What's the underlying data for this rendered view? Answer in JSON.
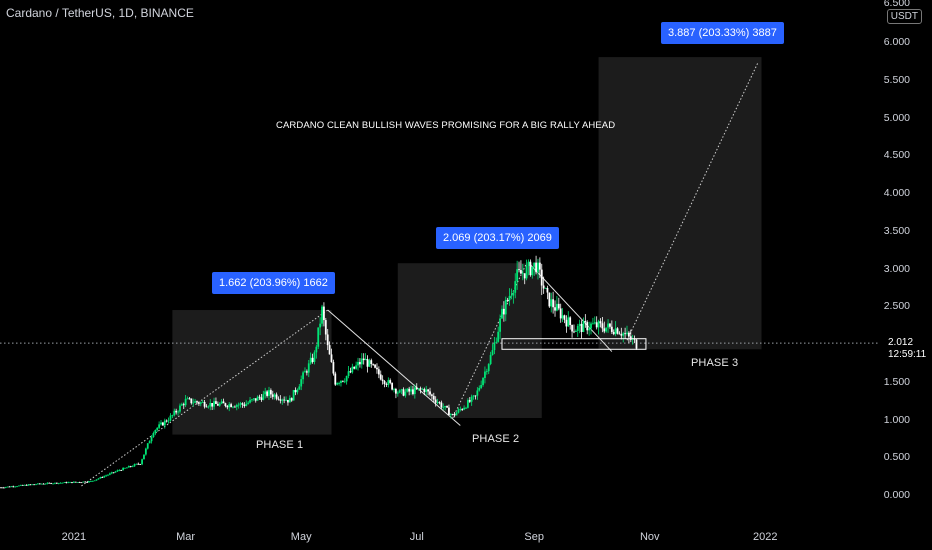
{
  "header": {
    "title": "Cardano / TetherUS, 1D, BINANCE"
  },
  "axis": {
    "unit_label": "USDT",
    "top_cut_label": "6.500"
  },
  "annotations": {
    "headline": "CARDANO CLEAN BULLISH WAVES PROMISING FOR A BIG RALLY AHEAD",
    "badge1": "1.662 (203.96%) 1662",
    "badge2": "2.069 (203.17%) 2069",
    "badge3": "3.887 (203.33%) 3887",
    "phase1": "PHASE 1",
    "phase2": "PHASE 2",
    "phase3": "PHASE 3"
  },
  "price_label": {
    "value": "2.012",
    "countdown": "12:59:11"
  },
  "colors": {
    "up": "#00e676",
    "down": "#ffffff",
    "badge": "#2962ff",
    "box": "#1c1c1c"
  },
  "chart_data": {
    "type": "line",
    "title": "Cardano / TetherUS, 1D, BINANCE",
    "xlabel": "",
    "ylabel": "USDT",
    "ylim": [
      -0.2,
      6.5
    ],
    "y_ticks": [
      "6.000",
      "5.500",
      "5.000",
      "4.500",
      "4.000",
      "3.500",
      "3.000",
      "2.500",
      "1.500",
      "1.000",
      "0.500",
      "0.000"
    ],
    "y_tick_values": [
      6.0,
      5.5,
      5.0,
      4.5,
      4.0,
      3.5,
      3.0,
      2.5,
      1.5,
      1.0,
      0.5,
      0.0
    ],
    "x_ticks": [
      "2021",
      "Mar",
      "May",
      "Jul",
      "Sep",
      "Nov",
      "2022"
    ],
    "x_tick_values": [
      "2021-01-01",
      "2021-03-01",
      "2021-05-01",
      "2021-07-01",
      "2021-09-01",
      "2021-11-01",
      "2022-01-01"
    ],
    "xlim": [
      "2020-11-23",
      "2022-02-20"
    ],
    "series": [
      {
        "x": [
          "2020-11-23",
          "2020-12-15",
          "2021-01-10",
          "2021-01-25",
          "2021-02-05",
          "2021-02-12",
          "2021-02-22",
          "2021-03-01",
          "2021-03-15",
          "2021-04-01",
          "2021-04-14",
          "2021-04-25",
          "2021-05-08",
          "2021-05-12",
          "2021-05-15",
          "2021-05-19",
          "2021-05-24",
          "2021-06-03",
          "2021-06-15",
          "2021-06-22",
          "2021-07-05",
          "2021-07-20",
          "2021-08-01",
          "2021-08-10",
          "2021-08-15",
          "2021-08-23",
          "2021-09-02",
          "2021-09-08",
          "2021-09-15",
          "2021-09-22",
          "2021-10-01",
          "2021-10-15",
          "2021-10-25"
        ],
        "values": [
          0.1,
          0.15,
          0.18,
          0.33,
          0.42,
          0.85,
          1.05,
          1.25,
          1.2,
          1.2,
          1.35,
          1.25,
          1.85,
          2.45,
          1.95,
          1.5,
          1.55,
          1.8,
          1.5,
          1.35,
          1.4,
          1.05,
          1.3,
          1.9,
          2.4,
          2.9,
          3.05,
          2.6,
          2.4,
          2.2,
          2.25,
          2.2,
          2.0
        ]
      }
    ],
    "price_line": 2.012,
    "support_zone": [
      1.93,
      2.07
    ]
  }
}
